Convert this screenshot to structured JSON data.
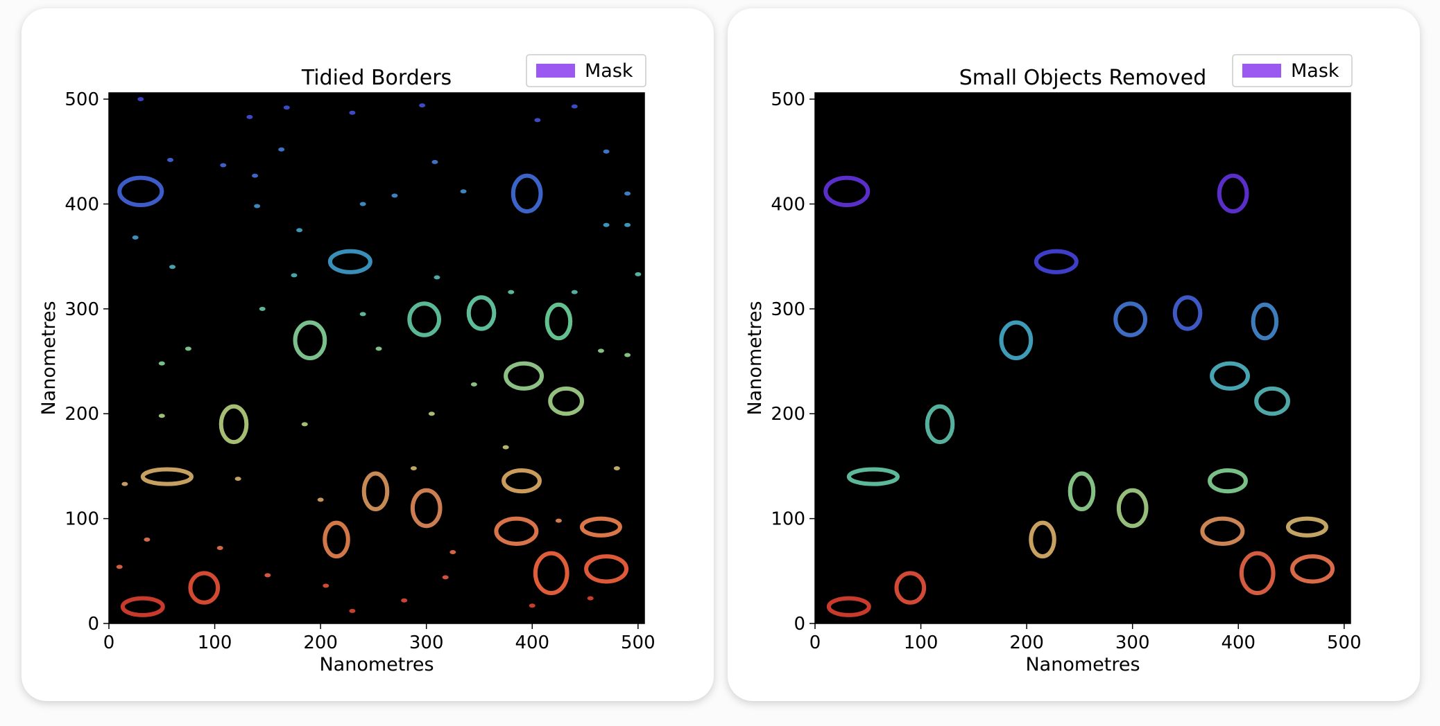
{
  "chart_data": [
    {
      "type": "heatmap",
      "title": "Tidied Borders",
      "xlabel": "Nanometres",
      "ylabel": "Nanometres",
      "xlim": [
        0,
        506
      ],
      "ylim": [
        0,
        506
      ],
      "xticks": [
        "0",
        "100",
        "200",
        "300",
        "400",
        "500"
      ],
      "yticks": [
        "0",
        "100",
        "200",
        "300",
        "400",
        "500"
      ],
      "legend": {
        "label": "Mask",
        "color": "#9b59f2",
        "position": "upper-right"
      },
      "background": "#000000",
      "colormap": "rainbow",
      "grains": [
        {
          "x": 30,
          "y": 412,
          "w": 40,
          "h": 26,
          "color": "#3d5cc8"
        },
        {
          "x": 395,
          "y": 410,
          "w": 26,
          "h": 34,
          "color": "#3b63c8"
        },
        {
          "x": 228,
          "y": 345,
          "w": 38,
          "h": 20,
          "color": "#3a8fb8"
        },
        {
          "x": 298,
          "y": 290,
          "w": 28,
          "h": 30,
          "color": "#5bb895"
        },
        {
          "x": 352,
          "y": 296,
          "w": 24,
          "h": 30,
          "color": "#5cbd98"
        },
        {
          "x": 425,
          "y": 288,
          "w": 22,
          "h": 32,
          "color": "#63c08f"
        },
        {
          "x": 190,
          "y": 270,
          "w": 28,
          "h": 34,
          "color": "#79c08d"
        },
        {
          "x": 392,
          "y": 236,
          "w": 34,
          "h": 24,
          "color": "#8cc084"
        },
        {
          "x": 432,
          "y": 212,
          "w": 30,
          "h": 24,
          "color": "#96c07e"
        },
        {
          "x": 118,
          "y": 190,
          "w": 24,
          "h": 34,
          "color": "#a6be74"
        },
        {
          "x": 55,
          "y": 140,
          "w": 46,
          "h": 14,
          "color": "#c5a060"
        },
        {
          "x": 252,
          "y": 126,
          "w": 22,
          "h": 34,
          "color": "#c88a55"
        },
        {
          "x": 300,
          "y": 110,
          "w": 26,
          "h": 34,
          "color": "#cc7d52"
        },
        {
          "x": 390,
          "y": 136,
          "w": 34,
          "h": 20,
          "color": "#c99b5c"
        },
        {
          "x": 215,
          "y": 80,
          "w": 22,
          "h": 32,
          "color": "#d27747"
        },
        {
          "x": 385,
          "y": 88,
          "w": 38,
          "h": 24,
          "color": "#d8734a"
        },
        {
          "x": 465,
          "y": 92,
          "w": 36,
          "h": 16,
          "color": "#da7648"
        },
        {
          "x": 418,
          "y": 48,
          "w": 30,
          "h": 38,
          "color": "#e05d3a"
        },
        {
          "x": 470,
          "y": 52,
          "w": 38,
          "h": 24,
          "color": "#de5939"
        },
        {
          "x": 90,
          "y": 34,
          "w": 26,
          "h": 28,
          "color": "#d24a32"
        },
        {
          "x": 32,
          "y": 16,
          "w": 38,
          "h": 16,
          "color": "#c83a2c"
        }
      ],
      "specks": [
        {
          "x": 30,
          "y": 500,
          "color": "#3b40c0"
        },
        {
          "x": 133,
          "y": 483,
          "color": "#3e47c4"
        },
        {
          "x": 168,
          "y": 492,
          "color": "#3e4ac4"
        },
        {
          "x": 230,
          "y": 487,
          "color": "#3e4ac4"
        },
        {
          "x": 296,
          "y": 494,
          "color": "#3e4ac4"
        },
        {
          "x": 405,
          "y": 480,
          "color": "#3e4ac4"
        },
        {
          "x": 440,
          "y": 493,
          "color": "#3e4ac4"
        },
        {
          "x": 58,
          "y": 442,
          "color": "#3e5dc8"
        },
        {
          "x": 108,
          "y": 437,
          "color": "#3e60c8"
        },
        {
          "x": 138,
          "y": 427,
          "color": "#3e66c8"
        },
        {
          "x": 163,
          "y": 452,
          "color": "#3e6fc4"
        },
        {
          "x": 308,
          "y": 440,
          "color": "#3e70c4"
        },
        {
          "x": 470,
          "y": 450,
          "color": "#3e74c4"
        },
        {
          "x": 490,
          "y": 410,
          "color": "#3e7cc4"
        },
        {
          "x": 270,
          "y": 408,
          "color": "#3e80c0"
        },
        {
          "x": 335,
          "y": 412,
          "color": "#3e84bc"
        },
        {
          "x": 25,
          "y": 368,
          "color": "#3e8fb8"
        },
        {
          "x": 140,
          "y": 398,
          "color": "#3e86bc"
        },
        {
          "x": 240,
          "y": 400,
          "color": "#3e88bc"
        },
        {
          "x": 470,
          "y": 380,
          "color": "#3e94b8"
        },
        {
          "x": 490,
          "y": 380,
          "color": "#3e96b4"
        },
        {
          "x": 180,
          "y": 375,
          "color": "#3e96b4"
        },
        {
          "x": 60,
          "y": 340,
          "color": "#4aa0b0"
        },
        {
          "x": 175,
          "y": 332,
          "color": "#4aa4aa"
        },
        {
          "x": 310,
          "y": 330,
          "color": "#4ea8a4"
        },
        {
          "x": 440,
          "y": 316,
          "color": "#54aea0"
        },
        {
          "x": 500,
          "y": 333,
          "color": "#56b09c"
        },
        {
          "x": 145,
          "y": 300,
          "color": "#5ab498"
        },
        {
          "x": 240,
          "y": 295,
          "color": "#5cb896"
        },
        {
          "x": 380,
          "y": 316,
          "color": "#5cb894"
        },
        {
          "x": 50,
          "y": 248,
          "color": "#78c088"
        },
        {
          "x": 75,
          "y": 262,
          "color": "#7ac088"
        },
        {
          "x": 255,
          "y": 262,
          "color": "#80c086"
        },
        {
          "x": 490,
          "y": 256,
          "color": "#84c084"
        },
        {
          "x": 465,
          "y": 260,
          "color": "#84c084"
        },
        {
          "x": 345,
          "y": 228,
          "color": "#8cc080"
        },
        {
          "x": 50,
          "y": 198,
          "color": "#9ebe78"
        },
        {
          "x": 185,
          "y": 190,
          "color": "#a4be74"
        },
        {
          "x": 305,
          "y": 200,
          "color": "#a8bc72"
        },
        {
          "x": 375,
          "y": 168,
          "color": "#b4b46c"
        },
        {
          "x": 480,
          "y": 148,
          "color": "#bca868"
        },
        {
          "x": 288,
          "y": 148,
          "color": "#bea466"
        },
        {
          "x": 122,
          "y": 138,
          "color": "#c0a064"
        },
        {
          "x": 15,
          "y": 133,
          "color": "#c49c62"
        },
        {
          "x": 200,
          "y": 118,
          "color": "#c8925c"
        },
        {
          "x": 425,
          "y": 98,
          "color": "#d07c50"
        },
        {
          "x": 36,
          "y": 80,
          "color": "#d06c48"
        },
        {
          "x": 105,
          "y": 72,
          "color": "#d26844"
        },
        {
          "x": 325,
          "y": 68,
          "color": "#d46444"
        },
        {
          "x": 10,
          "y": 54,
          "color": "#d45c40"
        },
        {
          "x": 150,
          "y": 46,
          "color": "#d65640"
        },
        {
          "x": 205,
          "y": 36,
          "color": "#d04a38"
        },
        {
          "x": 318,
          "y": 44,
          "color": "#d4503c"
        },
        {
          "x": 279,
          "y": 22,
          "color": "#cc4436"
        },
        {
          "x": 230,
          "y": 12,
          "color": "#c8402e"
        },
        {
          "x": 400,
          "y": 17,
          "color": "#c83e2c"
        },
        {
          "x": 455,
          "y": 24,
          "color": "#c83e2c"
        }
      ]
    },
    {
      "type": "heatmap",
      "title": "Small Objects Removed",
      "xlabel": "Nanometres",
      "ylabel": "Nanometres",
      "xlim": [
        0,
        506
      ],
      "ylim": [
        0,
        506
      ],
      "xticks": [
        "0",
        "100",
        "200",
        "300",
        "400",
        "500"
      ],
      "yticks": [
        "0",
        "100",
        "200",
        "300",
        "400",
        "500"
      ],
      "legend": {
        "label": "Mask",
        "color": "#9b59f2",
        "position": "upper-right"
      },
      "background": "#000000",
      "colormap": "rainbow",
      "grains": [
        {
          "x": 30,
          "y": 412,
          "w": 40,
          "h": 26,
          "color": "#5a2ec8"
        },
        {
          "x": 395,
          "y": 410,
          "w": 26,
          "h": 34,
          "color": "#5a2ec8"
        },
        {
          "x": 228,
          "y": 345,
          "w": 38,
          "h": 20,
          "color": "#3e3ec8"
        },
        {
          "x": 298,
          "y": 290,
          "w": 28,
          "h": 30,
          "color": "#3e6cc0"
        },
        {
          "x": 352,
          "y": 296,
          "w": 24,
          "h": 30,
          "color": "#3e58c4"
        },
        {
          "x": 425,
          "y": 288,
          "w": 22,
          "h": 32,
          "color": "#3e7cbc"
        },
        {
          "x": 190,
          "y": 270,
          "w": 28,
          "h": 34,
          "color": "#3e9cb8"
        },
        {
          "x": 392,
          "y": 236,
          "w": 34,
          "h": 24,
          "color": "#48a4b0"
        },
        {
          "x": 432,
          "y": 212,
          "w": 30,
          "h": 24,
          "color": "#4ea8a8"
        },
        {
          "x": 118,
          "y": 190,
          "w": 24,
          "h": 34,
          "color": "#56b09e"
        },
        {
          "x": 55,
          "y": 140,
          "w": 46,
          "h": 14,
          "color": "#5cb898"
        },
        {
          "x": 252,
          "y": 126,
          "w": 22,
          "h": 34,
          "color": "#84c084"
        },
        {
          "x": 300,
          "y": 110,
          "w": 26,
          "h": 34,
          "color": "#96be7a"
        },
        {
          "x": 390,
          "y": 136,
          "w": 34,
          "h": 20,
          "color": "#78c088"
        },
        {
          "x": 215,
          "y": 80,
          "w": 22,
          "h": 32,
          "color": "#c8a062"
        },
        {
          "x": 385,
          "y": 88,
          "w": 38,
          "h": 24,
          "color": "#cc8454"
        },
        {
          "x": 465,
          "y": 92,
          "w": 36,
          "h": 16,
          "color": "#c4a464"
        },
        {
          "x": 418,
          "y": 48,
          "w": 30,
          "h": 38,
          "color": "#d45c40"
        },
        {
          "x": 470,
          "y": 52,
          "w": 38,
          "h": 24,
          "color": "#d86a48"
        },
        {
          "x": 90,
          "y": 34,
          "w": 26,
          "h": 28,
          "color": "#d04a36"
        },
        {
          "x": 32,
          "y": 16,
          "w": 38,
          "h": 16,
          "color": "#c83a2c"
        }
      ],
      "specks": []
    }
  ]
}
